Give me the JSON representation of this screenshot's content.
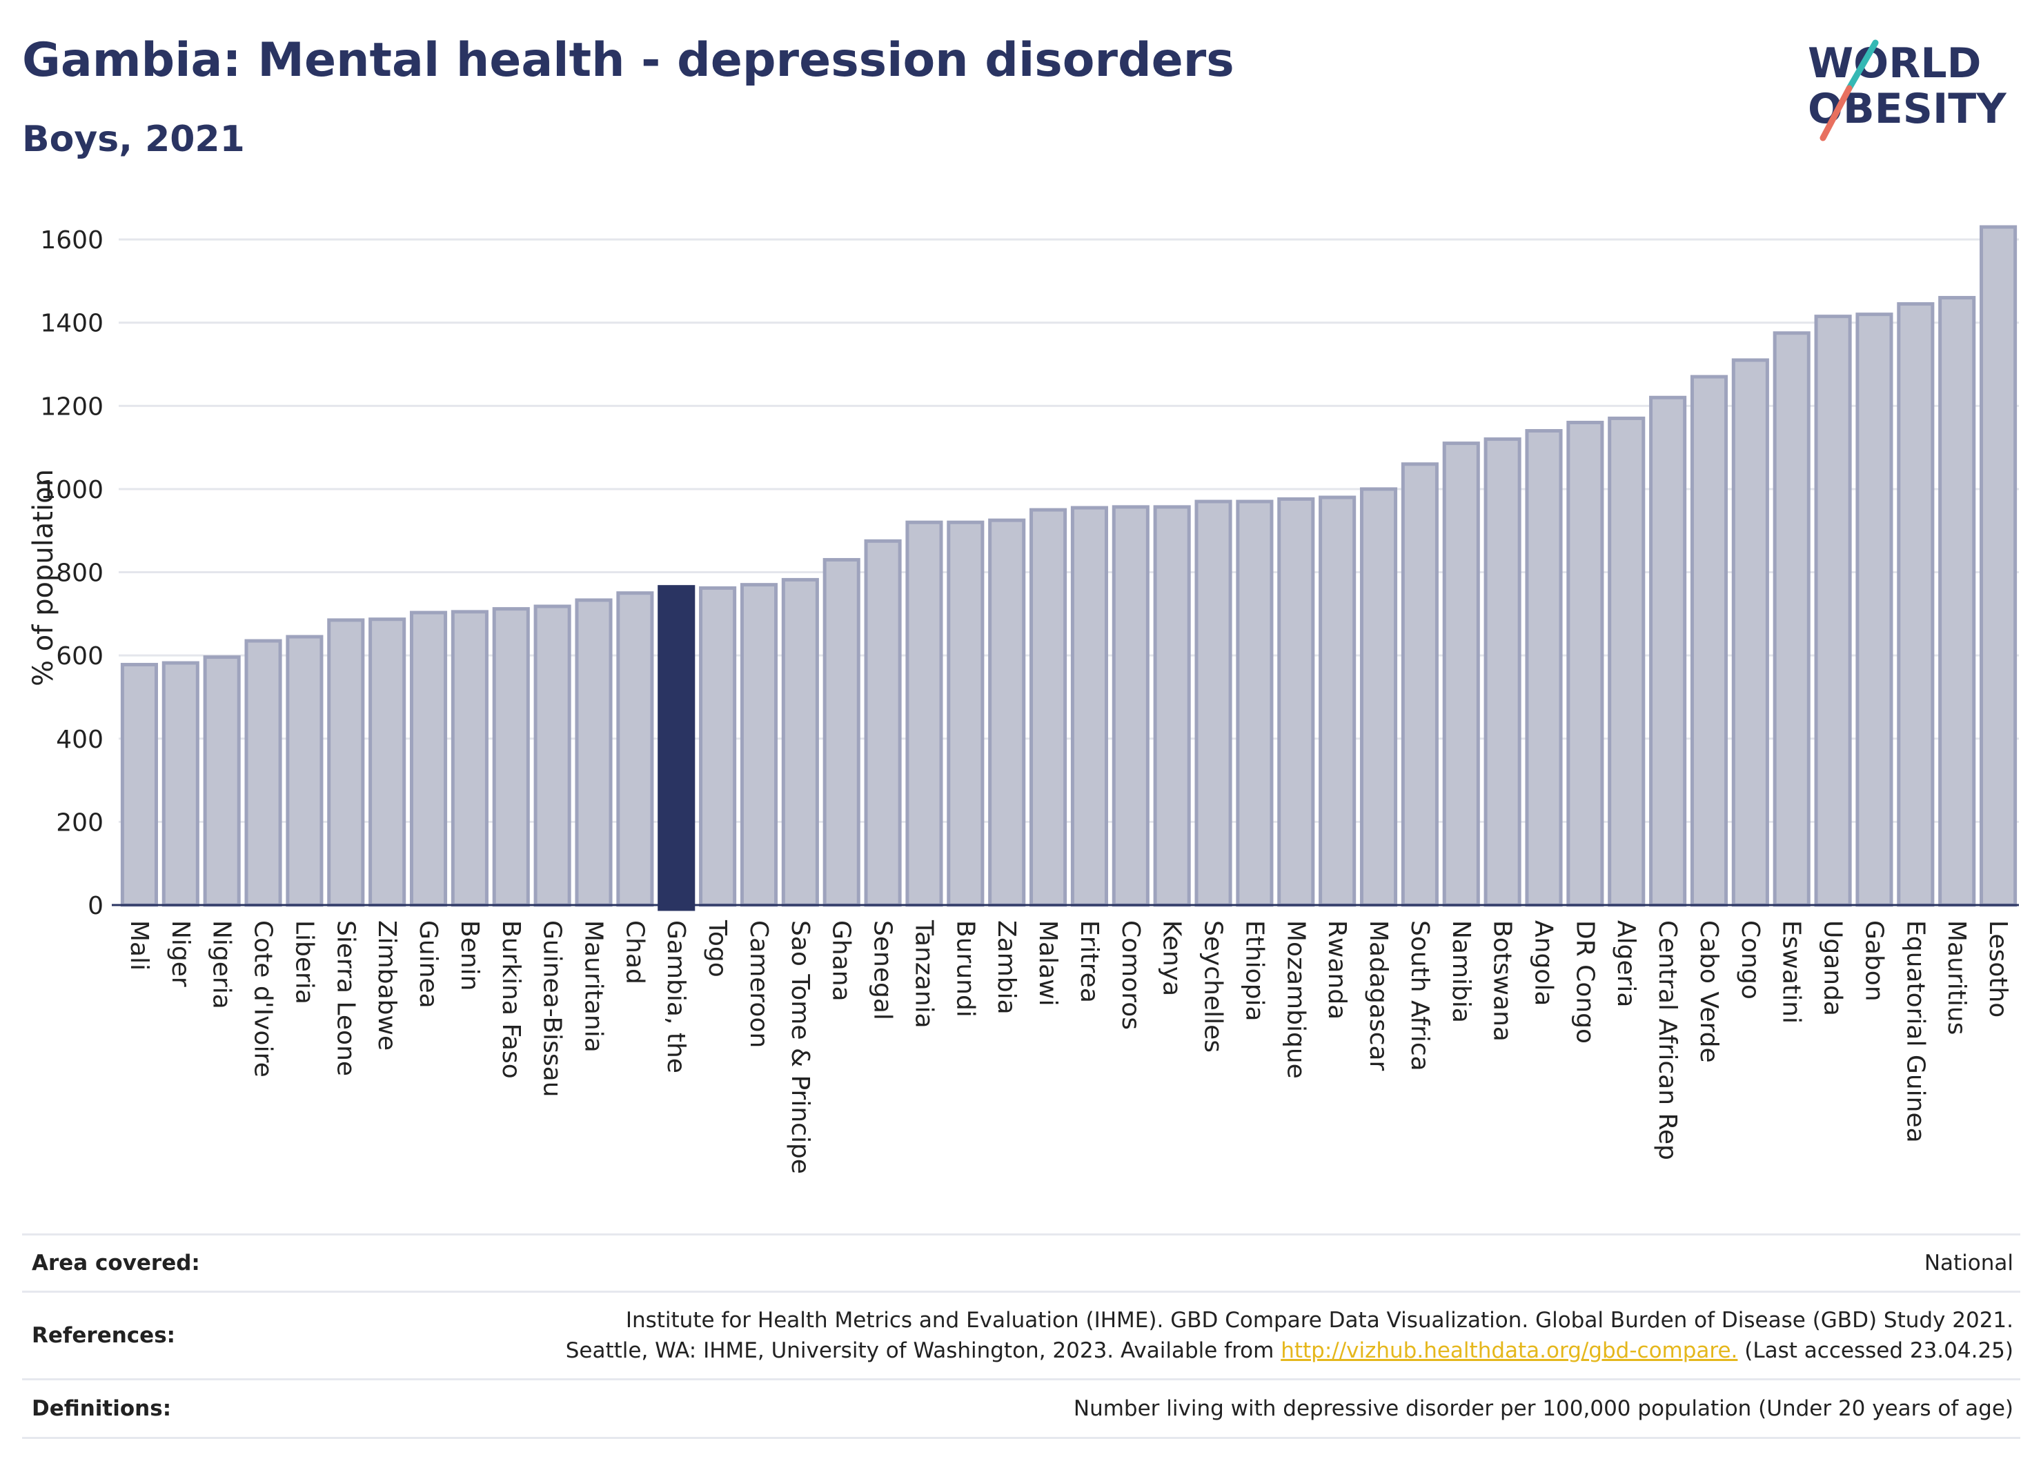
{
  "header": {
    "title": "Gambia: Mental health - depression disorders",
    "subtitle": "Boys, 2021"
  },
  "logo": {
    "line1": "WORLD",
    "line2": "OBESITY"
  },
  "colors": {
    "highlight": "#2a3462",
    "bar": "#c0c3d1",
    "bar_border": "#9ea3bd",
    "accent_teal": "#35b8b4",
    "accent_red": "#e8705f",
    "link": "#e5b71c"
  },
  "chart_data": {
    "type": "bar",
    "ylabel": "% of population",
    "ylim": [
      0,
      1640
    ],
    "yticks": [
      0,
      200,
      400,
      600,
      800,
      1000,
      1200,
      1400,
      1600
    ],
    "grid": true,
    "highlight": "Gambia, the",
    "categories": [
      "Mali",
      "Niger",
      "Nigeria",
      "Cote d'Ivoire",
      "Liberia",
      "Sierra Leone",
      "Zimbabwe",
      "Guinea",
      "Benin",
      "Burkina Faso",
      "Guinea-Bissau",
      "Mauritania",
      "Chad",
      "Gambia, the",
      "Togo",
      "Cameroon",
      "Sao Tome & Principe",
      "Ghana",
      "Senegal",
      "Tanzania",
      "Burundi",
      "Zambia",
      "Malawi",
      "Eritrea",
      "Comoros",
      "Kenya",
      "Seychelles",
      "Ethiopia",
      "Mozambique",
      "Rwanda",
      "Madagascar",
      "South Africa",
      "Namibia",
      "Botswana",
      "Angola",
      "DR Congo",
      "Algeria",
      "Central African Rep",
      "Cabo Verde",
      "Congo",
      "Eswatini",
      "Uganda",
      "Gabon",
      "Equatorial Guinea",
      "Mauritius",
      "Lesotho"
    ],
    "values": [
      578,
      582,
      596,
      635,
      645,
      685,
      687,
      703,
      705,
      712,
      718,
      733,
      750,
      765,
      762,
      770,
      782,
      830,
      875,
      920,
      920,
      925,
      950,
      955,
      957,
      957,
      970,
      970,
      976,
      980,
      1000,
      1060,
      1110,
      1120,
      1140,
      1160,
      1170,
      1220,
      1270,
      1310,
      1375,
      1415,
      1420,
      1445,
      1460,
      1630
    ]
  },
  "footer": {
    "area_label": "Area covered:",
    "area_value": "National",
    "refs_label": "References:",
    "refs_line1": "Institute for Health Metrics and Evaluation (IHME). GBD Compare Data Visualization. Global Burden of Disease (GBD) Study 2021.",
    "refs_line2_pre": "Seattle, WA: IHME, University of Washington, 2023. Available from ",
    "refs_link": "http://vizhub.healthdata.org/gbd-compare.",
    "refs_line2_post": " (Last accessed 23.04.25)",
    "defs_label": "Definitions:",
    "defs_value": "Number living with depressive disorder per 100,000 population (Under 20 years of age)"
  }
}
